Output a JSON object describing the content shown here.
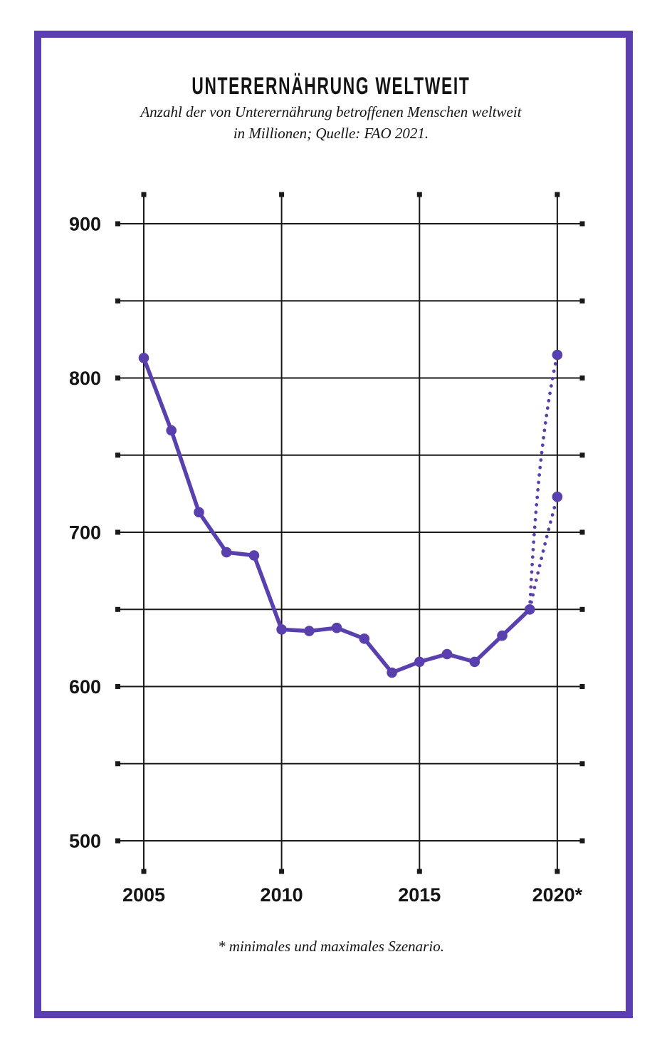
{
  "colors": {
    "accent": "#5a3fae",
    "frame": "#5a3eb2",
    "grid": "#1a1a1a",
    "text": "#141414",
    "background": "#ffffff"
  },
  "chart_data": {
    "type": "line",
    "title": "UNTERERNÄHRUNG WELTWEIT",
    "subtitle_lines": [
      "Anzahl der von Unterernährung betroffenen Menschen weltweit",
      "in Millionen; Quelle: FAO 2021."
    ],
    "footnote": "* minimales und maximales Szenario.",
    "unit": "Millionen Menschen",
    "x": [
      2005,
      2006,
      2007,
      2008,
      2009,
      2010,
      2011,
      2012,
      2013,
      2014,
      2015,
      2016,
      2017,
      2018,
      2019
    ],
    "values": [
      813,
      766,
      713,
      687,
      685,
      637,
      636,
      638,
      631,
      609,
      616,
      621,
      616,
      633,
      650
    ],
    "projection": {
      "year": 2020,
      "min": 723,
      "max": 815,
      "style": "dotted"
    },
    "xlim": [
      2005,
      2020
    ],
    "ylim": [
      500,
      900
    ],
    "y_gridline_step": 50,
    "x_tick_values": [
      2005,
      2010,
      2015,
      2020
    ],
    "x_tick_labels": [
      "2005",
      "2010",
      "2015",
      "2020*"
    ],
    "y_tick_values": [
      900,
      800,
      700,
      600,
      500
    ],
    "y_tick_labels": [
      "900",
      "800",
      "700",
      "600",
      "500"
    ],
    "grid": true,
    "legend": false
  }
}
